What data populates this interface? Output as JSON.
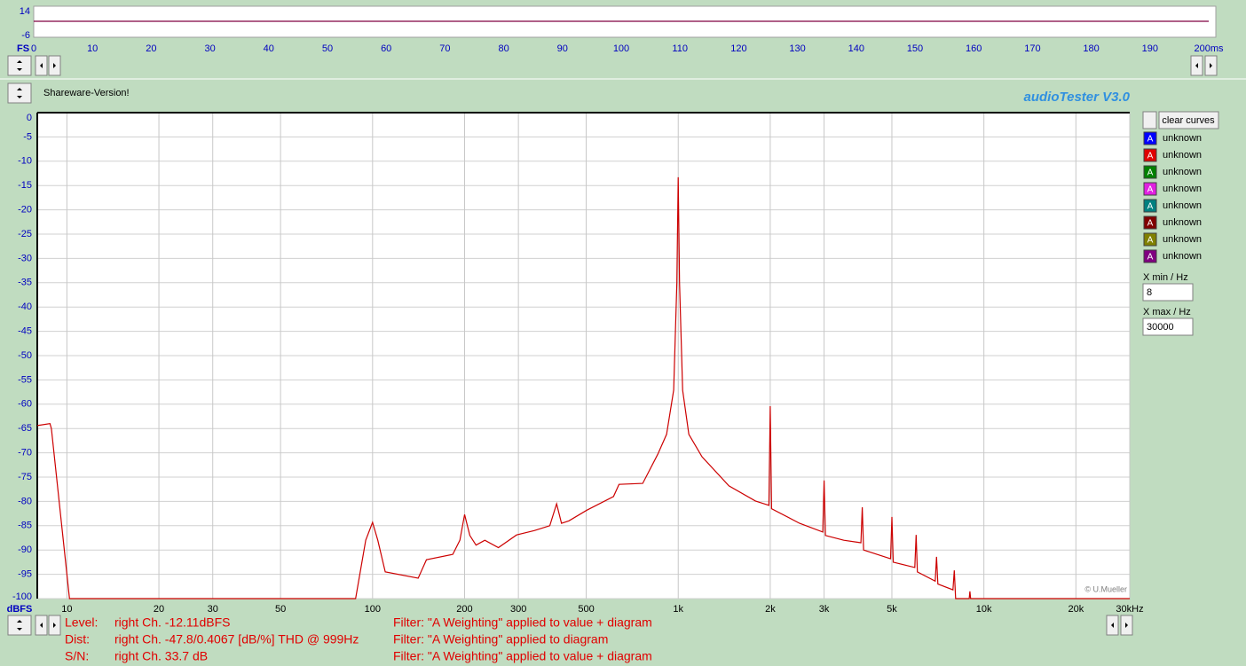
{
  "app_title": "audioTester  V3.0",
  "notice": "Shareware-Version!",
  "clear_button": "clear curves",
  "curves": [
    {
      "label": "A",
      "name": "unknown",
      "color": "#0000ff"
    },
    {
      "label": "A",
      "name": "unknown",
      "color": "#e00000"
    },
    {
      "label": "A",
      "name": "unknown",
      "color": "#008000"
    },
    {
      "label": "A",
      "name": "unknown",
      "color": "#e020e0"
    },
    {
      "label": "A",
      "name": "unknown",
      "color": "#008080"
    },
    {
      "label": "A",
      "name": "unknown",
      "color": "#800000"
    },
    {
      "label": "A",
      "name": "unknown",
      "color": "#808000"
    },
    {
      "label": "A",
      "name": "unknown",
      "color": "#800080"
    }
  ],
  "xmin": {
    "label": "X min / Hz",
    "value": "8"
  },
  "xmax": {
    "label": "X max / Hz",
    "value": "30000"
  },
  "status": [
    [
      "Level:",
      "right Ch. -12.11dBFS",
      "Filter: \"A Weighting\" applied to value + diagram"
    ],
    [
      "Dist:",
      "right Ch. -47.8/0.4067 [dB/%] THD @ 999Hz",
      "Filter: \"A Weighting\" applied to diagram"
    ],
    [
      "S/N:",
      "right Ch. 33.7 dB",
      "Filter: \"A Weighting\" applied to value + diagram"
    ]
  ],
  "chart_data": [
    {
      "type": "line",
      "y_label": "FS",
      "xlim": [
        0,
        200
      ],
      "ylim": [
        -6,
        14
      ],
      "yticks": [
        -6,
        14
      ],
      "xticks": [
        0,
        10,
        20,
        30,
        40,
        50,
        60,
        70,
        80,
        90,
        100,
        110,
        120,
        130,
        140,
        150,
        160,
        170,
        180,
        190,
        {
          "value": 200,
          "label": "200ms"
        }
      ],
      "x": [
        0,
        200
      ],
      "series": [
        {
          "color": "#800040",
          "values": [
            4.3,
            4.3
          ]
        }
      ]
    },
    {
      "type": "line",
      "log_x": true,
      "y_label": "dBFS",
      "annotation": "© U.Mueller",
      "grid": true,
      "xlim": [
        8,
        30000
      ],
      "ylim": [
        -100,
        0
      ],
      "yticks": [
        0,
        -5,
        -10,
        -15,
        -20,
        -25,
        -30,
        -35,
        -40,
        -45,
        -50,
        -55,
        -60,
        -65,
        -70,
        -75,
        -80,
        -85,
        -90,
        -95,
        -100
      ],
      "xticks": [
        10,
        20,
        30,
        50,
        100,
        200,
        300,
        500,
        {
          "value": 1000,
          "label": "1k"
        },
        {
          "value": 2000,
          "label": "2k"
        },
        {
          "value": 3000,
          "label": "3k"
        },
        {
          "value": 5000,
          "label": "5k"
        },
        {
          "value": 10000,
          "label": "10k"
        },
        {
          "value": 20000,
          "label": "20k"
        },
        {
          "value": 30000,
          "label": "30kHz"
        }
      ],
      "x": [
        8,
        8.8,
        8.9,
        10.2,
        88,
        95,
        100,
        104,
        110,
        141,
        150,
        183,
        193,
        200,
        208,
        218,
        233,
        258,
        296,
        338,
        380,
        400,
        415,
        439,
        502,
        614,
        640,
        765,
        857,
        916,
        966,
        990,
        1000,
        1010,
        1034,
        1083,
        1196,
        1465,
        1789,
        1980,
        2000,
        2020,
        2495,
        2970,
        3000,
        3030,
        3480,
        3960,
        4000,
        4040,
        4950,
        5000,
        5050,
        5940,
        6000,
        6060,
        6930,
        7000,
        7070,
        7920,
        8000,
        8080,
        8950,
        9000,
        9050,
        30000
      ],
      "series": [
        {
          "color": "#cc0000",
          "values": [
            -64.4,
            -64,
            -65,
            -100,
            -100,
            -88,
            -84.3,
            -88,
            -94.5,
            -95.8,
            -92,
            -90.9,
            -88,
            -82.7,
            -87,
            -89,
            -88,
            -89.5,
            -86.9,
            -86,
            -85,
            -80.5,
            -84.5,
            -84,
            -81.8,
            -79,
            -76.5,
            -76.3,
            -70.3,
            -66.2,
            -57.1,
            -35,
            -13.3,
            -35,
            -57.1,
            -66.2,
            -70.8,
            -76.8,
            -79.9,
            -80.8,
            -60.4,
            -81.5,
            -84.5,
            -86.3,
            -75.7,
            -87,
            -88,
            -88.5,
            -81.2,
            -90,
            -91.8,
            -83.2,
            -92.5,
            -93.6,
            -86.9,
            -94.5,
            -96.4,
            -91.4,
            -97,
            -98.2,
            -94.2,
            -100,
            -100,
            -98.5,
            -100,
            -100
          ]
        }
      ]
    }
  ]
}
